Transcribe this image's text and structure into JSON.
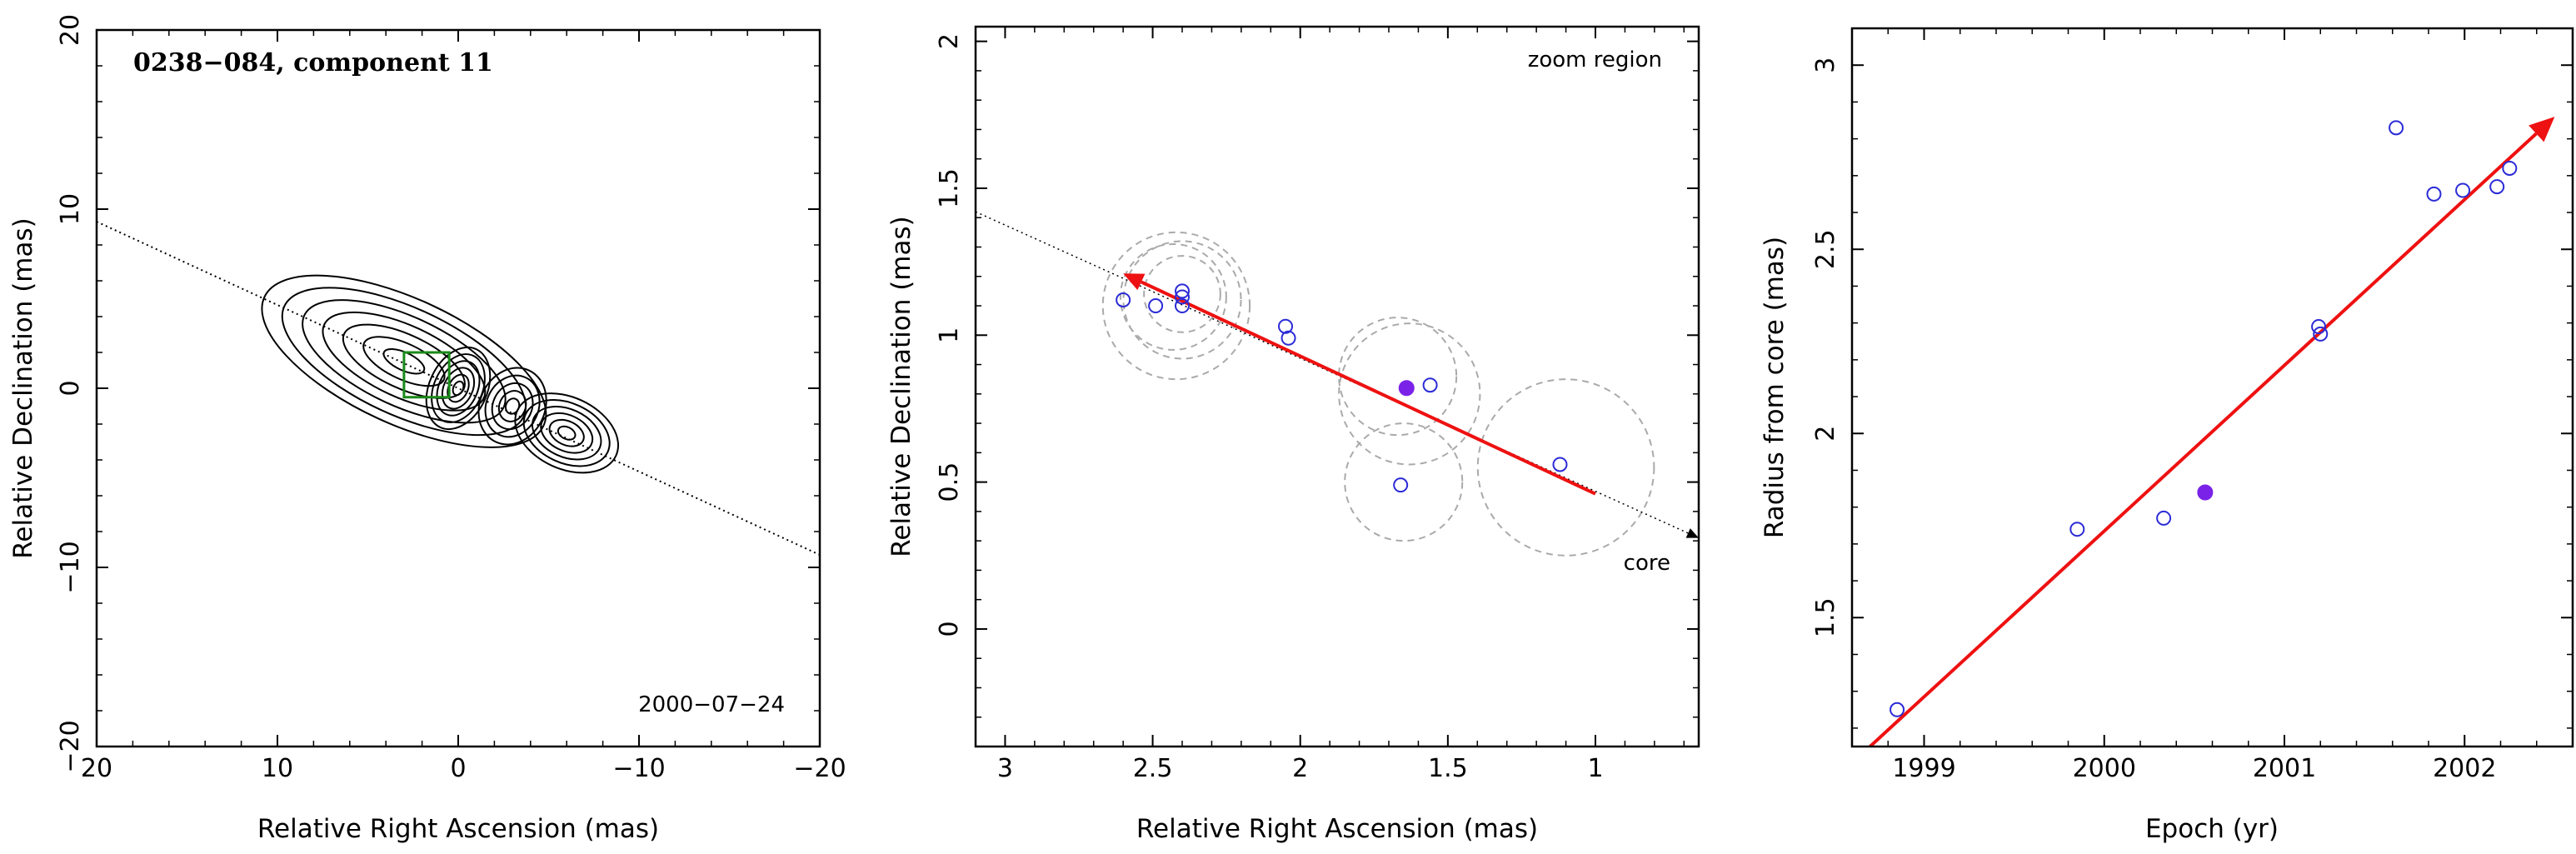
{
  "chart_data": [
    {
      "type": "contour",
      "panel": "left",
      "title": "0238−084, component 11",
      "date_label": "2000−07−24",
      "xlabel": "Relative Right Ascension (mas)",
      "ylabel": "Relative Declination (mas)",
      "xlim": [
        20,
        -20
      ],
      "ylim": [
        -20,
        20
      ],
      "xticks": [
        20,
        10,
        0,
        -10,
        -20
      ],
      "xtick_labels": [
        "20",
        "10",
        "0",
        "−10",
        "−20"
      ],
      "yticks": [
        -20,
        -10,
        0,
        10,
        20
      ],
      "ytick_labels": [
        "−20",
        "−10",
        "0",
        "10",
        "20"
      ],
      "jet_axis_line": {
        "x": [
          20,
          -20
        ],
        "y": [
          9.3,
          -9.3
        ]
      },
      "zoom_box": {
        "x": [
          3,
          0.5
        ],
        "y": [
          -0.5,
          2
        ]
      },
      "contour_groups": [
        {
          "x": 3,
          "y": 1.5,
          "rx": 8.5,
          "ry": 3.5,
          "levels": 7
        },
        {
          "x": 0,
          "y": 0,
          "rx": 1.6,
          "ry": 2.4,
          "levels": 6
        },
        {
          "x": -3,
          "y": -1,
          "rx": 1.8,
          "ry": 2.2,
          "levels": 5
        },
        {
          "x": -6,
          "y": -2.5,
          "rx": 3,
          "ry": 2,
          "levels": 6
        }
      ]
    },
    {
      "type": "scatter",
      "panel": "middle",
      "annotation_top": "zoom region",
      "annotation_core": "core",
      "xlabel": "Relative Right Ascension (mas)",
      "ylabel": "Relative Declination (mas)",
      "xlim": [
        3.1,
        0.65
      ],
      "ylim": [
        -0.4,
        2.05
      ],
      "xticks": [
        3,
        2.5,
        2,
        1.5,
        1
      ],
      "xtick_labels": [
        "3",
        "2.5",
        "2",
        "1.5",
        "1"
      ],
      "yticks": [
        0,
        0.5,
        1,
        1.5,
        2
      ],
      "ytick_labels": [
        "0",
        "0.5",
        "1",
        "1.5",
        "2"
      ],
      "points": [
        {
          "x": 2.6,
          "y": 1.12
        },
        {
          "x": 2.49,
          "y": 1.1
        },
        {
          "x": 2.4,
          "y": 1.15
        },
        {
          "x": 2.4,
          "y": 1.13
        },
        {
          "x": 2.4,
          "y": 1.1
        },
        {
          "x": 2.05,
          "y": 1.03
        },
        {
          "x": 2.04,
          "y": 0.99
        },
        {
          "x": 1.56,
          "y": 0.83
        },
        {
          "x": 1.66,
          "y": 0.49
        },
        {
          "x": 1.12,
          "y": 0.56
        }
      ],
      "highlight_point": {
        "x": 1.64,
        "y": 0.82
      },
      "error_circles": [
        {
          "x": 2.4,
          "y": 1.12,
          "r": 0.2
        },
        {
          "x": 2.42,
          "y": 1.1,
          "r": 0.25
        },
        {
          "x": 2.43,
          "y": 1.13,
          "r": 0.18
        },
        {
          "x": 2.4,
          "y": 1.14,
          "r": 0.13
        },
        {
          "x": 1.63,
          "y": 0.8,
          "r": 0.24
        },
        {
          "x": 1.67,
          "y": 0.86,
          "r": 0.2
        },
        {
          "x": 1.65,
          "y": 0.5,
          "r": 0.2
        },
        {
          "x": 1.1,
          "y": 0.55,
          "r": 0.3
        }
      ],
      "dotted_axis": {
        "from": [
          3.1,
          1.42
        ],
        "to": [
          0.65,
          0.31
        ]
      },
      "velocity_arrow": {
        "from": [
          1.0,
          0.46
        ],
        "to": [
          2.6,
          1.21
        ]
      }
    },
    {
      "type": "scatter",
      "panel": "right",
      "xlabel": "Epoch (yr)",
      "ylabel": "Radius from core (mas)",
      "xlim": [
        1998.6,
        2002.6
      ],
      "ylim": [
        1.15,
        3.1
      ],
      "xticks": [
        1999,
        2000,
        2001,
        2002
      ],
      "xtick_labels": [
        "1999",
        "2000",
        "2001",
        "2002"
      ],
      "yticks": [
        1.5,
        2,
        2.5,
        3
      ],
      "ytick_labels": [
        "1.5",
        "2",
        "2.5",
        "3"
      ],
      "points": [
        {
          "x": 1998.85,
          "y": 1.25
        },
        {
          "x": 1999.85,
          "y": 1.74
        },
        {
          "x": 2000.33,
          "y": 1.77
        },
        {
          "x": 2001.19,
          "y": 2.29
        },
        {
          "x": 2001.2,
          "y": 2.27
        },
        {
          "x": 2001.62,
          "y": 2.83
        },
        {
          "x": 2001.83,
          "y": 2.65
        },
        {
          "x": 2001.99,
          "y": 2.66
        },
        {
          "x": 2002.18,
          "y": 2.67
        },
        {
          "x": 2002.25,
          "y": 2.72
        }
      ],
      "highlight_point": {
        "x": 2000.56,
        "y": 1.84
      },
      "fit_arrow": {
        "from": [
          1998.7,
          1.15
        ],
        "to": [
          2002.5,
          2.86
        ]
      }
    }
  ],
  "colors": {
    "axis": "#000000",
    "open_point": "#2b2bd6",
    "filled_point": "#7a22e8",
    "arrow": "#ee1111",
    "circle": "#aaaaaa",
    "box": "#1a8a1a"
  }
}
